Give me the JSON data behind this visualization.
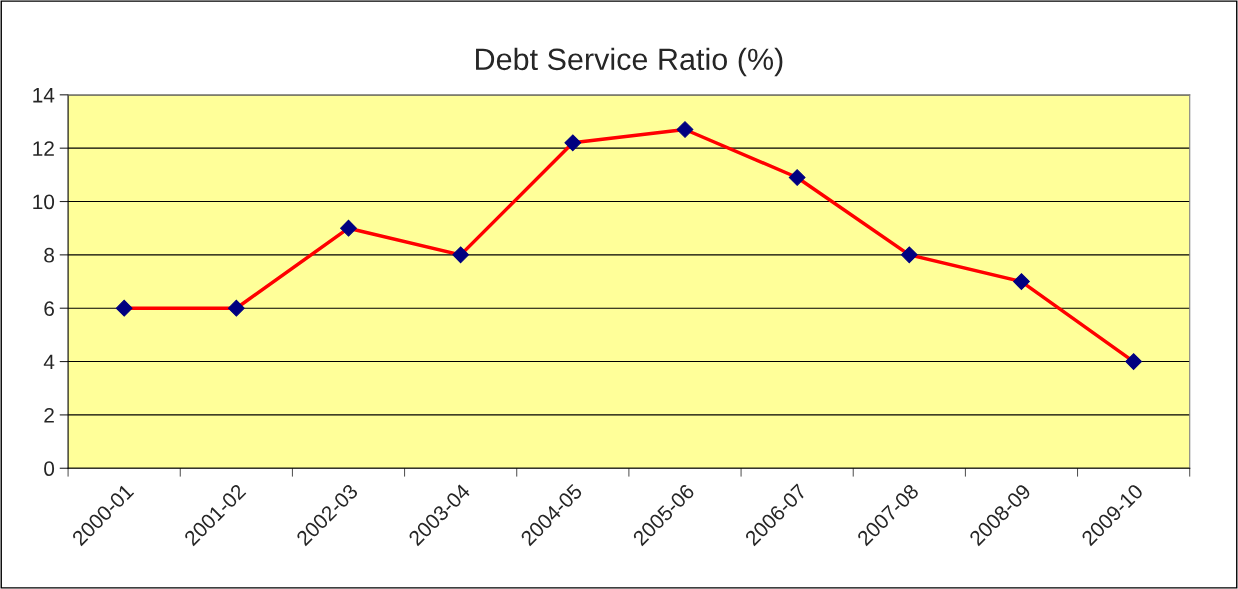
{
  "chart_data": {
    "type": "line",
    "title": "Debt Service Ratio (%)",
    "categories": [
      "2000-01",
      "2001-02",
      "2002-03",
      "2003-04",
      "2004-05",
      "2005-06",
      "2006-07",
      "2007-08",
      "2008-09",
      "2009-10"
    ],
    "series": [
      {
        "color": "#ff0000",
        "values": [
          6,
          6,
          9,
          8,
          12.2,
          12.7,
          10.9,
          8,
          7,
          4
        ]
      }
    ],
    "ylim": [
      0,
      14
    ],
    "yticks": [
      0,
      2,
      4,
      6,
      8,
      10,
      12,
      14
    ],
    "grid": "y",
    "marker": "diamond",
    "line_style": "solid",
    "legend": false
  }
}
